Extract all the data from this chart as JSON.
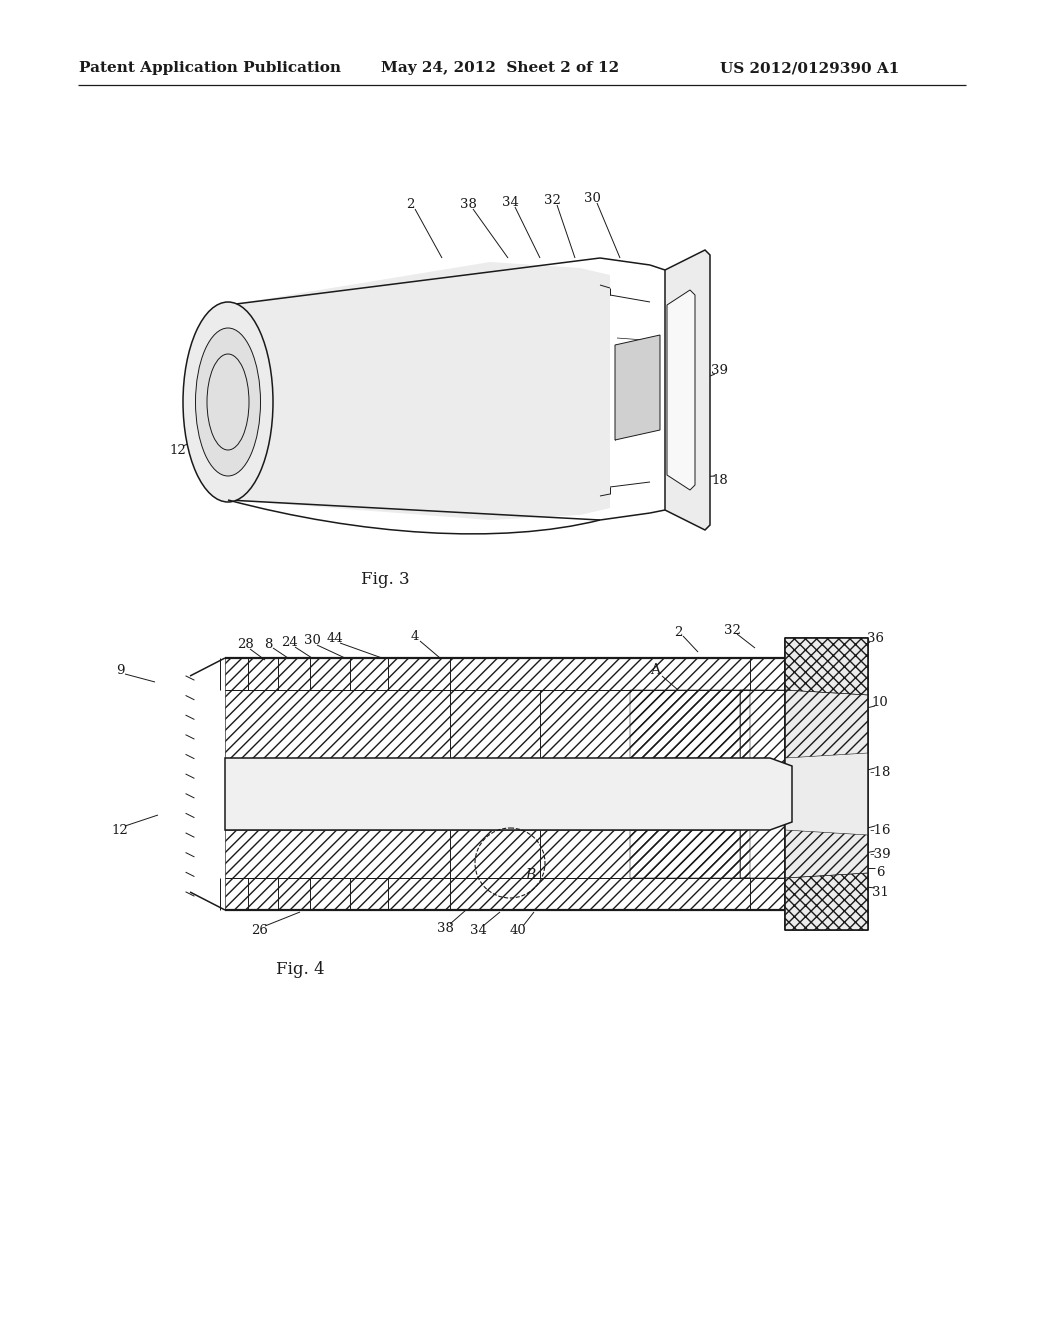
{
  "header_left": "Patent Application Publication",
  "header_mid": "May 24, 2012  Sheet 2 of 12",
  "header_right": "US 2012/0129390 A1",
  "fig3_label": "Fig. 3",
  "fig4_label": "Fig. 4",
  "bg_color": "#ffffff",
  "lc": "#1a1a1a",
  "gray_light": "#ececec",
  "gray_mid": "#d0d0d0"
}
